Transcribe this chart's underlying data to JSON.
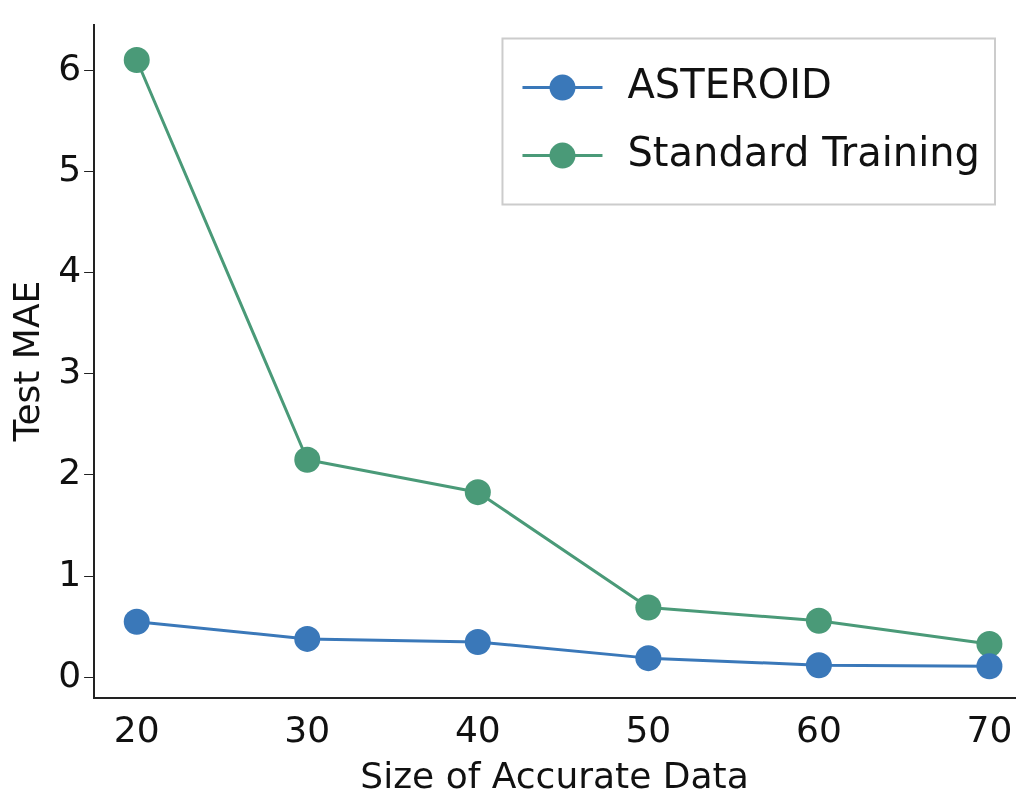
{
  "chart_data": {
    "type": "line",
    "xlabel": "Size of Accurate Data",
    "ylabel": "Test MAE",
    "x": [
      20,
      30,
      40,
      50,
      60,
      70
    ],
    "series": [
      {
        "name": "ASTEROID",
        "color": "#3a78b9",
        "values": [
          0.55,
          0.38,
          0.35,
          0.19,
          0.12,
          0.11
        ]
      },
      {
        "name": "Standard Training",
        "color": "#4a9a78",
        "values": [
          6.1,
          2.15,
          1.83,
          0.69,
          0.56,
          0.33
        ]
      }
    ],
    "xlim": [
      17.5,
      71.5
    ],
    "ylim": [
      -0.2,
      6.45
    ],
    "xticks": [
      20,
      30,
      40,
      50,
      60,
      70
    ],
    "yticks": [
      0,
      1,
      2,
      3,
      4,
      5,
      6
    ],
    "grid": false,
    "legend": "top right",
    "marker": "circle",
    "line_style": "solid"
  }
}
